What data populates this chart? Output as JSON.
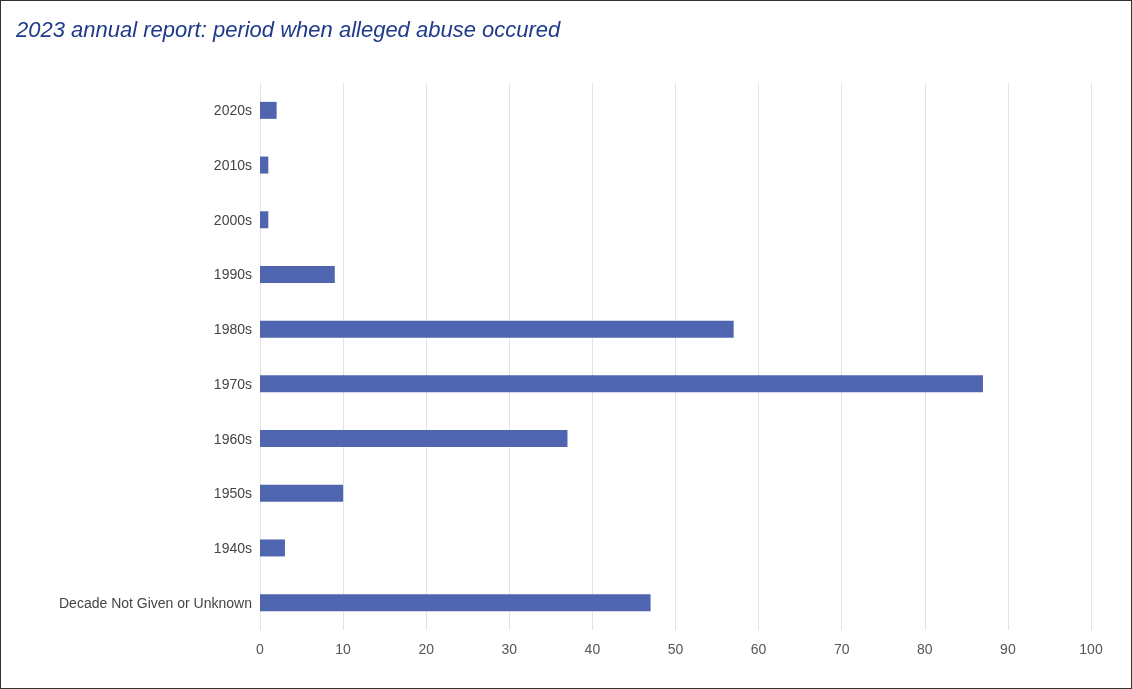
{
  "chart_data": {
    "type": "bar",
    "orientation": "horizontal",
    "title": "2023 annual report: period when alleged abuse occured",
    "categories": [
      "2020s",
      "2010s",
      "2000s",
      "1990s",
      "1980s",
      "1970s",
      "1960s",
      "1950s",
      "1940s",
      "Decade Not Given or Unknown"
    ],
    "values": [
      2,
      1,
      1,
      9,
      57,
      87,
      37,
      10,
      3,
      47
    ],
    "color": "#5065b0",
    "xlim": [
      0,
      100
    ],
    "xticks": [
      0,
      10,
      20,
      30,
      40,
      50,
      60,
      70,
      80,
      90,
      100
    ],
    "grid": "x"
  }
}
